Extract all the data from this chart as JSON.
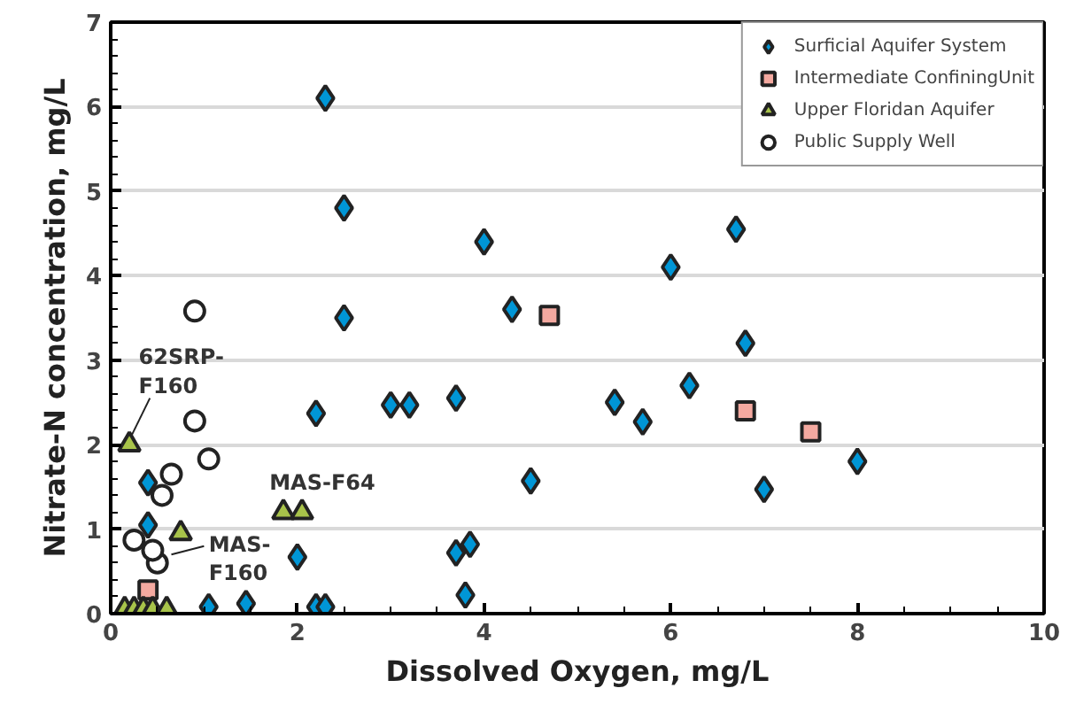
{
  "chart_data": {
    "type": "scatter",
    "xlabel": "Dissolved Oxygen, mg/L",
    "ylabel": "Nitrate-N concentration, mg/L",
    "xlim": [
      0,
      10
    ],
    "ylim": [
      0,
      7
    ],
    "xticks": [
      0,
      2,
      4,
      6,
      8,
      10
    ],
    "yticks": [
      0,
      1,
      2,
      3,
      4,
      5,
      6,
      7
    ],
    "grid": "y",
    "legend": "top right",
    "series": [
      {
        "name": "Surficial Aquifer System",
        "color": "#0096d6",
        "marker": "diamond",
        "x": [
          2.3,
          2.5,
          2.5,
          4.0,
          4.3,
          6.7,
          6.0,
          6.8,
          2.2,
          3.0,
          3.2,
          3.7,
          5.4,
          5.7,
          6.2,
          7.0,
          8.0,
          4.5,
          3.7,
          3.85,
          3.8,
          2.0,
          0.4,
          0.4,
          1.05,
          1.45,
          2.2,
          2.3
        ],
        "values": [
          6.1,
          4.8,
          3.5,
          4.4,
          3.6,
          4.55,
          4.1,
          3.2,
          2.37,
          2.47,
          2.47,
          2.55,
          2.5,
          2.27,
          2.7,
          1.47,
          1.8,
          1.57,
          0.72,
          0.82,
          0.22,
          0.67,
          1.55,
          1.05,
          0.08,
          0.12,
          0.08,
          0.08
        ]
      },
      {
        "name": "Intermediate ConfiningUnit",
        "color": "#f4a9a0",
        "marker": "square",
        "x": [
          4.7,
          6.8,
          7.5,
          0.4
        ],
        "values": [
          3.53,
          2.4,
          2.15,
          0.28
        ]
      },
      {
        "name": "Upper Floridan Aquifer",
        "color": "#a8c34a",
        "marker": "triangle",
        "x": [
          0.2,
          1.85,
          2.05,
          0.75,
          0.15,
          0.25,
          0.35,
          0.45,
          0.6
        ],
        "values": [
          2.0,
          1.2,
          1.2,
          0.95,
          0.05,
          0.05,
          0.05,
          0.05,
          0.05
        ]
      },
      {
        "name": "Public Supply Well",
        "color": "#ffffff",
        "marker": "circle",
        "x": [
          0.9,
          0.9,
          1.05,
          0.65,
          0.55,
          0.25,
          0.5,
          0.45
        ],
        "values": [
          3.58,
          2.28,
          1.83,
          1.65,
          1.4,
          0.87,
          0.6,
          0.75
        ]
      }
    ],
    "annotations": [
      {
        "text": "62SRP-F160",
        "x": 0.2,
        "y": 2.0
      },
      {
        "text": "MAS-F64",
        "x": 1.95,
        "y": 1.2
      },
      {
        "text": "MAS-F160",
        "x": 0.5,
        "y": 0.7
      }
    ]
  }
}
